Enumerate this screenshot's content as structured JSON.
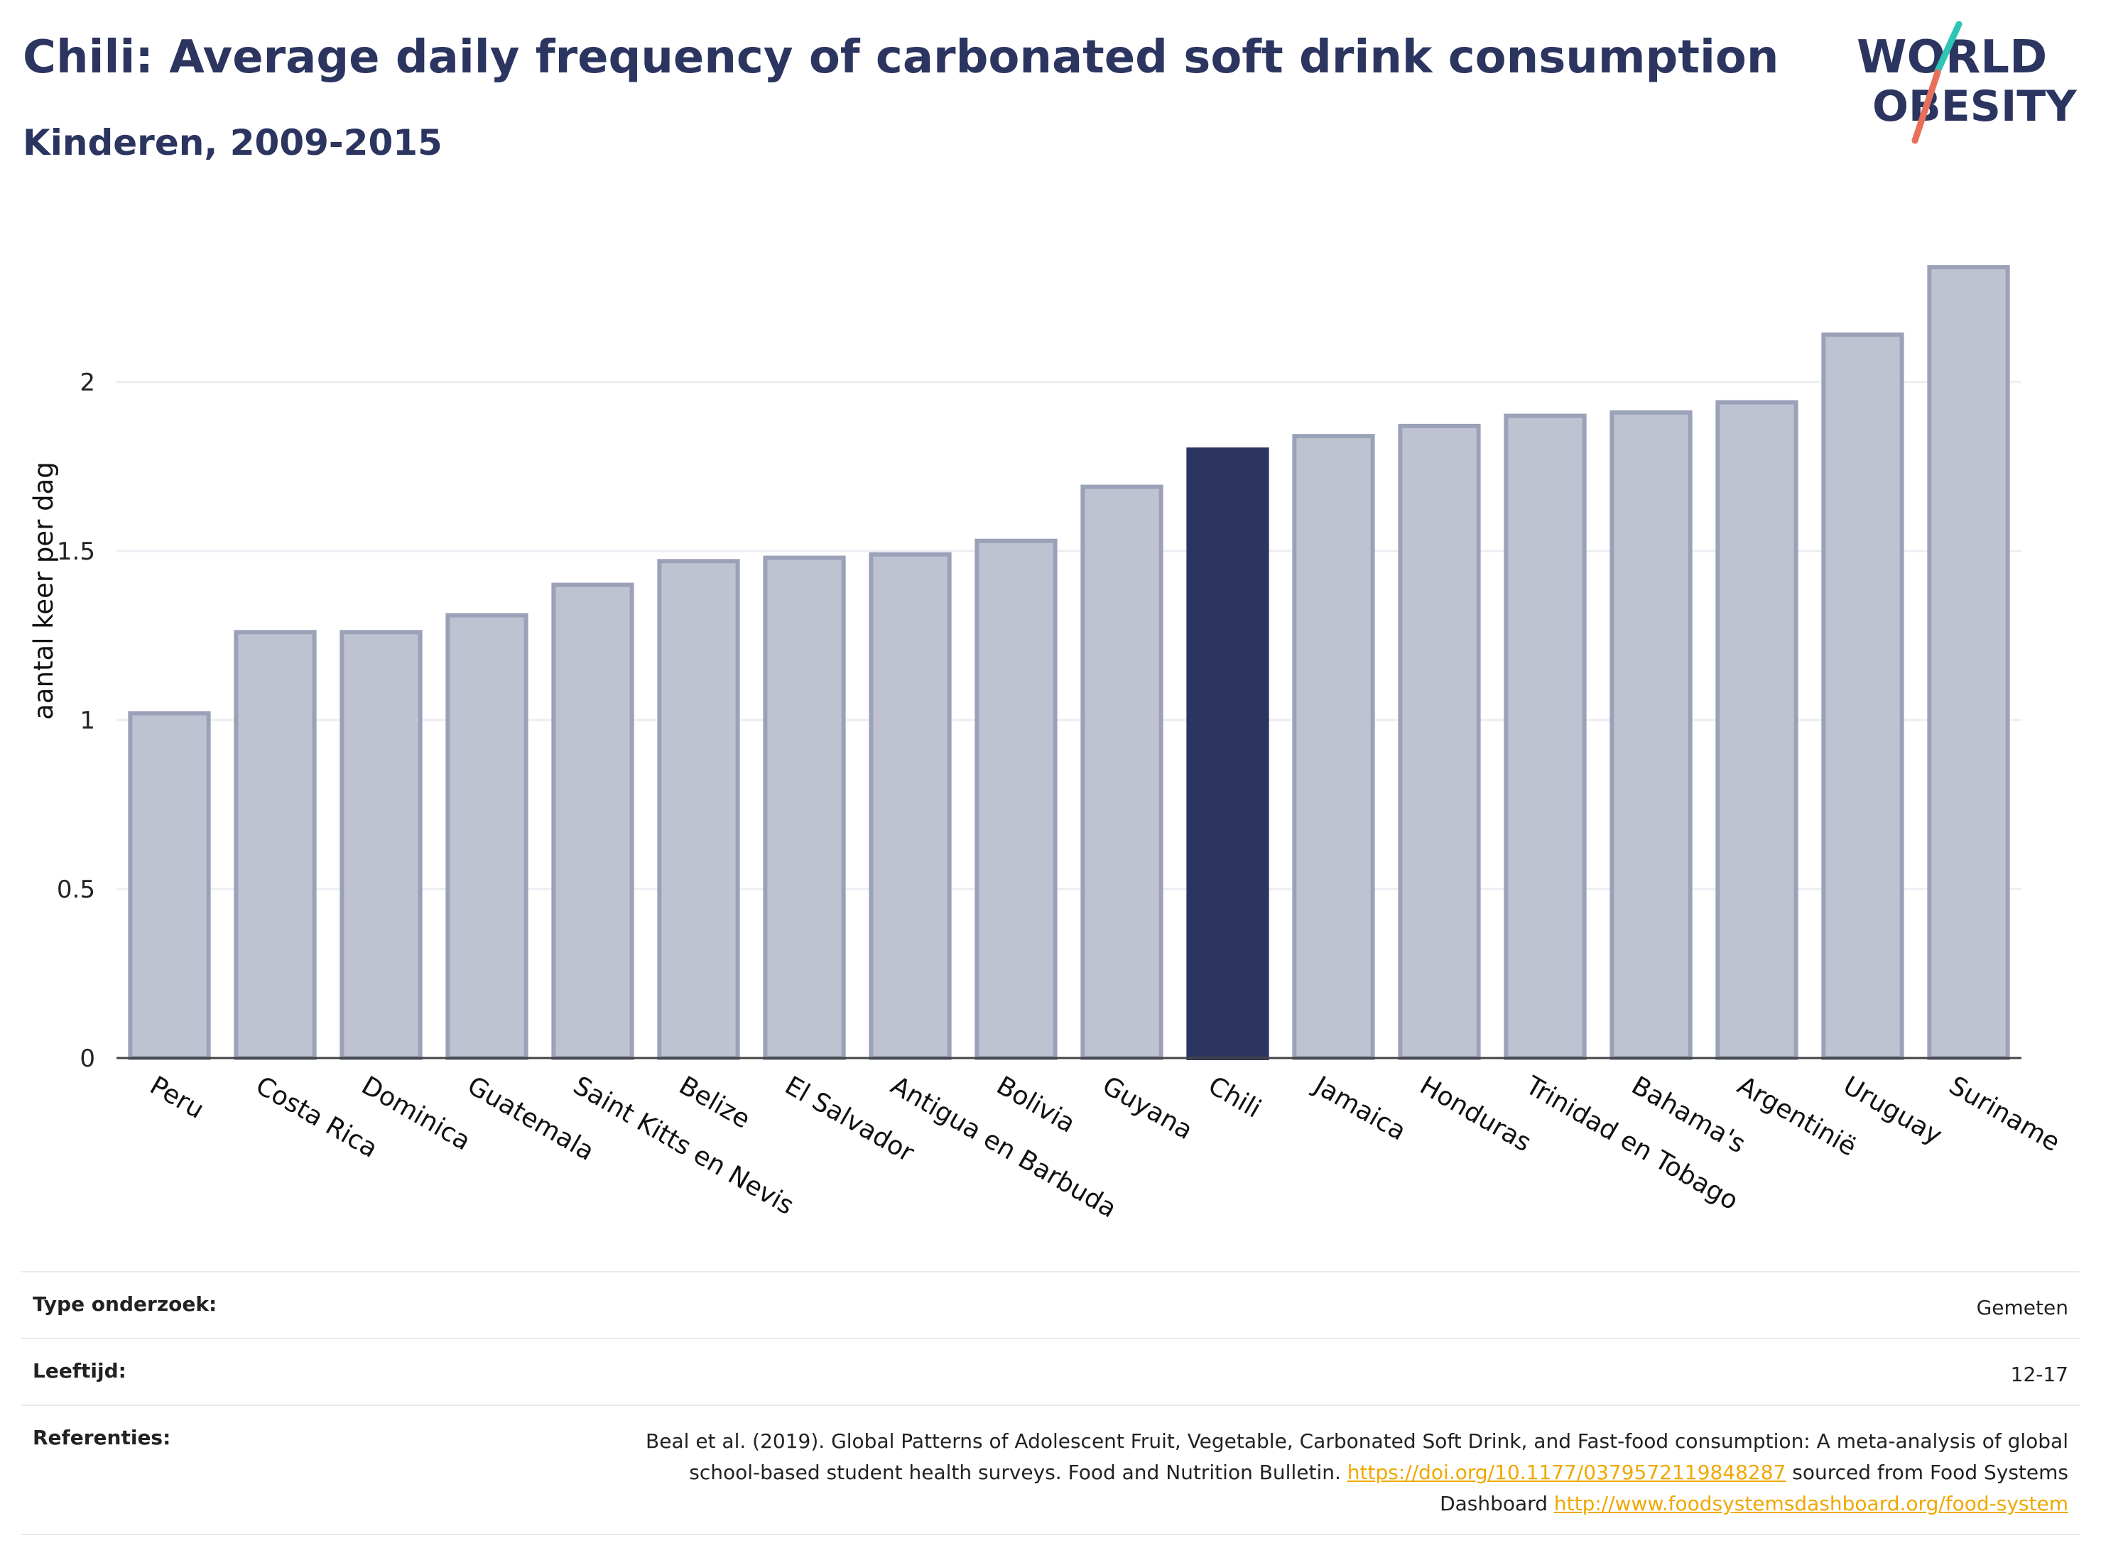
{
  "header": {
    "title": "Chili: Average daily frequency of carbonated soft drink consumption",
    "subtitle": "Kinderen, 2009-2015"
  },
  "logo": {
    "line1": "WORLD",
    "line2": "OBESITY",
    "colors": {
      "text": "#2b3560",
      "teal": "#2ec4b6",
      "coral": "#e8705a"
    }
  },
  "chart_data": {
    "type": "bar",
    "title": "Chili: Average daily frequency of carbonated soft drink consumption",
    "subtitle": "Kinderen, 2009-2015",
    "xlabel": "",
    "ylabel": "aantal keer per dag",
    "ylim": [
      0,
      2.5
    ],
    "yticks": [
      0,
      0.5,
      1,
      1.5,
      2
    ],
    "ytick_labels": [
      "0",
      "0.5",
      "1",
      "1.5",
      "2"
    ],
    "grid": true,
    "legend": "none",
    "categories": [
      "Peru",
      "Costa Rica",
      "Dominica",
      "Guatemala",
      "Saint Kitts en Nevis",
      "Belize",
      "El Salvador",
      "Antigua en Barbuda",
      "Bolivia",
      "Guyana",
      "Chili",
      "Jamaica",
      "Honduras",
      "Trinidad en Tobago",
      "Bahama's",
      "Argentinië",
      "Uruguay",
      "Suriname"
    ],
    "values": [
      1.02,
      1.26,
      1.26,
      1.31,
      1.4,
      1.47,
      1.48,
      1.49,
      1.53,
      1.69,
      1.8,
      1.84,
      1.87,
      1.9,
      1.91,
      1.94,
      2.14,
      2.34
    ],
    "highlight": "Chili",
    "colors": {
      "bar": "#bfc3d1",
      "bar_edge": "#9aa1b8",
      "highlight": "#2b3560",
      "grid": "#eceef3"
    }
  },
  "meta": {
    "rows": [
      {
        "label": "Type onderzoek:",
        "value": "Gemeten"
      },
      {
        "label": "Leeftijd:",
        "value": "12-17"
      }
    ],
    "references": {
      "label": "Referenties:",
      "text1": "Beal et al. (2019). Global Patterns of Adolescent Fruit, Vegetable, Carbonated Soft Drink, and Fast-food consumption: A meta-analysis of global school-based student health surveys. Food and Nutrition Bulletin. ",
      "link1": "https://doi.org/10.1177/0379572119848287",
      "text2": " sourced from Food Systems Dashboard ",
      "link2": "http://www.foodsystemsdashboard.org/food-system"
    }
  }
}
